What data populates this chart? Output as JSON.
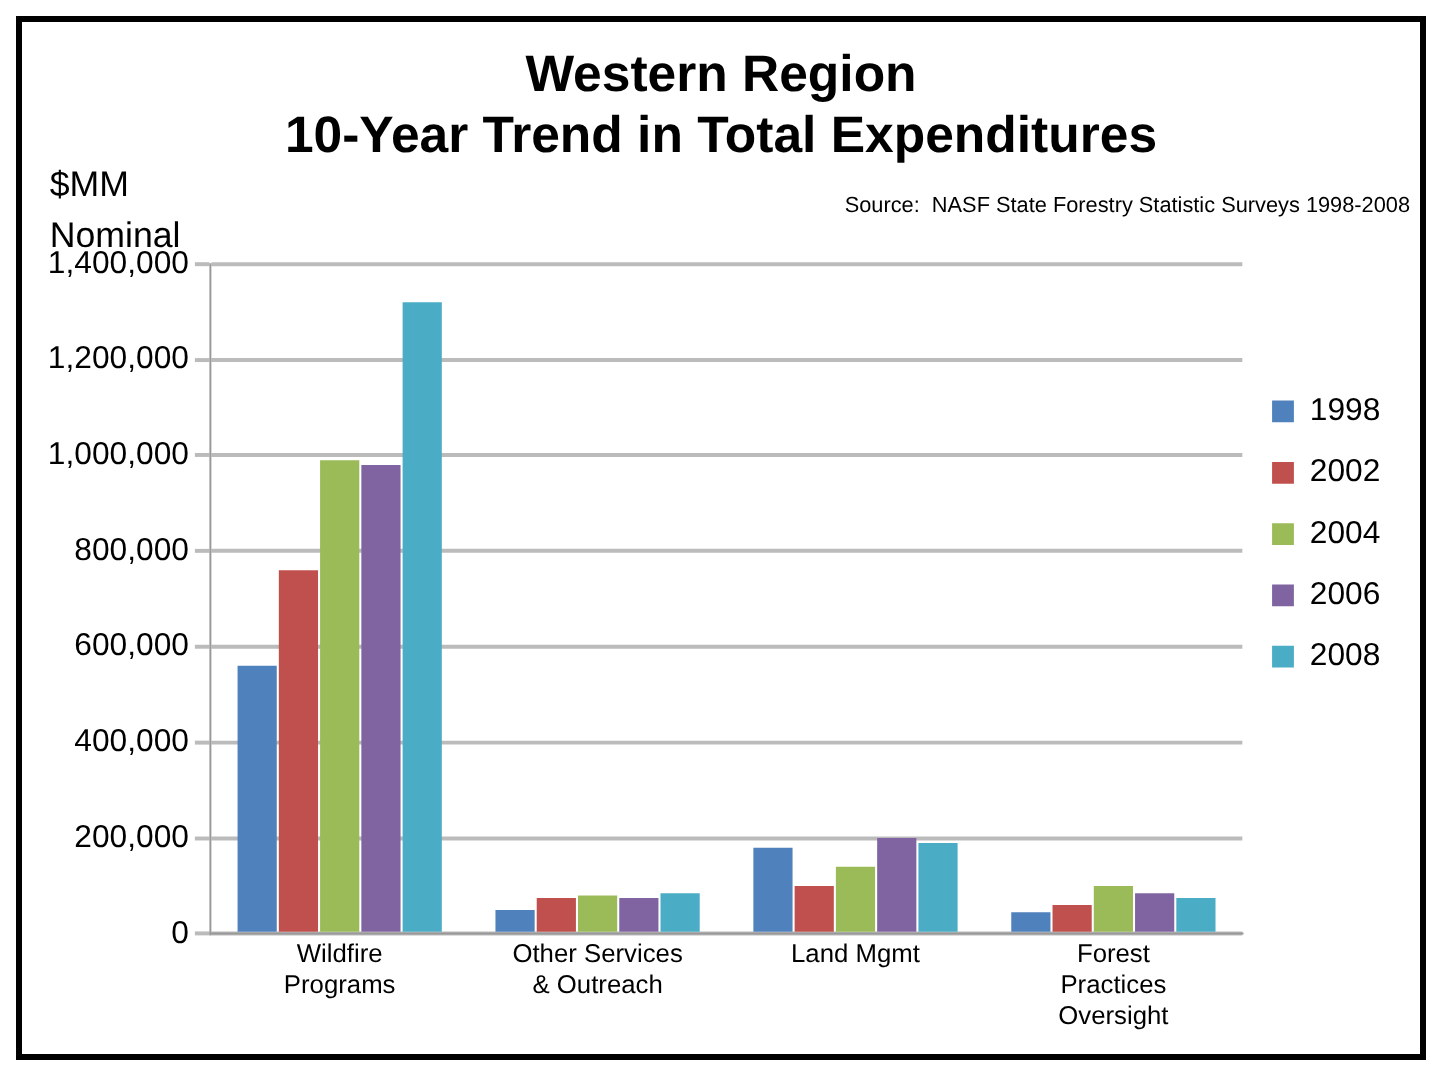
{
  "chart_data": {
    "type": "bar",
    "title": "Western Region\n10-Year Trend in Total Expenditures",
    "ylabel": "$MM\nNominal",
    "annotations": [
      "Source:  NASF State Forestry Statistic Surveys 1998-2008"
    ],
    "categories": [
      "Wildfire\nPrograms",
      "Other Services\n& Outreach",
      "Land Mgmt",
      "Forest\nPractices\nOversight"
    ],
    "series": [
      {
        "name": "1998",
        "color": "#4f81bd",
        "values": [
          560000,
          50000,
          180000,
          45000
        ]
      },
      {
        "name": "2002",
        "color": "#c0504d",
        "values": [
          760000,
          75000,
          100000,
          60000
        ]
      },
      {
        "name": "2004",
        "color": "#9bbb59",
        "values": [
          990000,
          80000,
          140000,
          100000
        ]
      },
      {
        "name": "2006",
        "color": "#8064a2",
        "values": [
          980000,
          75000,
          200000,
          85000
        ]
      },
      {
        "name": "2008",
        "color": "#4bacc6",
        "values": [
          1320000,
          85000,
          190000,
          75000
        ]
      }
    ],
    "ylim": [
      0,
      1400000
    ],
    "yticks": [
      {
        "value": 0,
        "label": "0"
      },
      {
        "value": 200000,
        "label": "200,000"
      },
      {
        "value": 400000,
        "label": "400,000"
      },
      {
        "value": 600000,
        "label": "600,000"
      },
      {
        "value": 800000,
        "label": "800,000"
      },
      {
        "value": 1000000,
        "label": "1,000,000"
      },
      {
        "value": 1200000,
        "label": "1,200,000"
      },
      {
        "value": 1400000,
        "label": "1,400,000"
      }
    ],
    "grid": "y",
    "legend": "right"
  }
}
